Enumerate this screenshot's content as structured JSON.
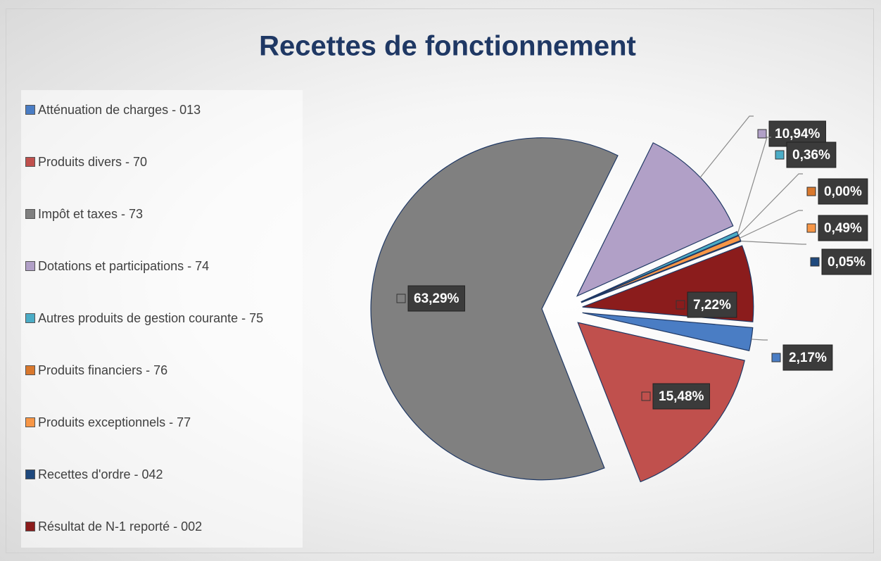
{
  "chart_data": {
    "type": "pie",
    "title": "Recettes de fonctionnement",
    "categories": [
      "Atténuation de charges - 013",
      "Produits divers - 70",
      "Impôt et taxes - 73",
      "Dotations et participations - 74",
      "Autres produits de gestion courante - 75",
      "Produits financiers - 76",
      "Produits exceptionnels - 77",
      "Recettes d'ordre - 042",
      "Résultat de N-1 reporté - 002"
    ],
    "values": [
      2.17,
      15.48,
      63.29,
      10.94,
      0.36,
      0.0,
      0.49,
      0.05,
      7.22
    ],
    "value_labels": [
      "2,17%",
      "15,48%",
      "63,29%",
      "10,94%",
      "0,36%",
      "0,00%",
      "0,49%",
      "0,05%",
      "7,22%"
    ],
    "colors": [
      "#4a7dc4",
      "#c0504d",
      "#808080",
      "#b1a0c7",
      "#4bacc6",
      "#d9782d",
      "#f79646",
      "#1f497d",
      "#8b1c1c"
    ],
    "legend": "left"
  }
}
